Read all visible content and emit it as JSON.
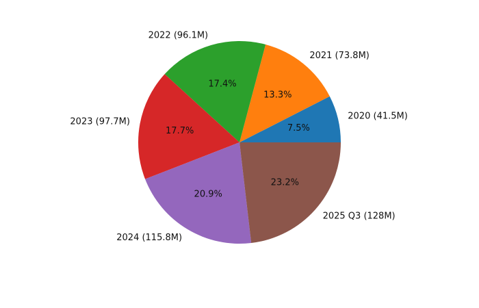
{
  "chart_data": {
    "type": "pie",
    "title": "",
    "labels": [
      "2020 (41.5M)",
      "2021 (73.8M)",
      "2022 (96.1M)",
      "2023 (97.7M)",
      "2024 (115.8M)",
      "2025 Q3 (128M)"
    ],
    "values": [
      41.5,
      73.8,
      96.1,
      97.7,
      115.8,
      128
    ],
    "percent_labels": [
      "7.5%",
      "13.3%",
      "17.4%",
      "17.7%",
      "20.9%",
      "23.2%"
    ],
    "colors": [
      "#1f77b4",
      "#ff7f0e",
      "#2ca02c",
      "#d62728",
      "#9467bd",
      "#8c564b"
    ],
    "start_angle_deg": 0,
    "direction": "counterclockwise",
    "legend": "none"
  }
}
